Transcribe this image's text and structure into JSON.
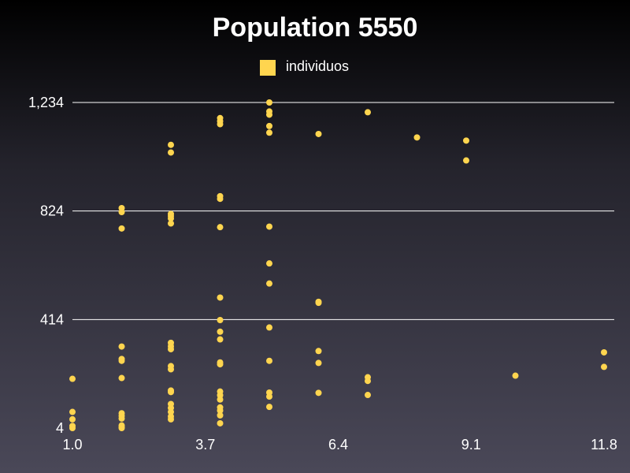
{
  "chart_data": {
    "type": "scatter",
    "title": "Population 5550",
    "xlabel": "",
    "ylabel": "",
    "series": [
      {
        "name": "individuos",
        "color": "#ffd54f",
        "points": [
          [
            1.0,
            190
          ],
          [
            1.0,
            65
          ],
          [
            1.0,
            37
          ],
          [
            1.0,
            12
          ],
          [
            1.0,
            4
          ],
          [
            2.0,
            835
          ],
          [
            2.0,
            820
          ],
          [
            2.0,
            758
          ],
          [
            2.0,
            312
          ],
          [
            2.0,
            265
          ],
          [
            2.0,
            258
          ],
          [
            2.0,
            193
          ],
          [
            2.0,
            60
          ],
          [
            2.0,
            50
          ],
          [
            2.0,
            40
          ],
          [
            2.0,
            14
          ],
          [
            2.0,
            8
          ],
          [
            2.0,
            4
          ],
          [
            3.0,
            1074
          ],
          [
            3.0,
            1045
          ],
          [
            3.0,
            813
          ],
          [
            3.0,
            805
          ],
          [
            3.0,
            796
          ],
          [
            3.0,
            777
          ],
          [
            3.0,
            326
          ],
          [
            3.0,
            313
          ],
          [
            3.0,
            302
          ],
          [
            3.0,
            238
          ],
          [
            3.0,
            226
          ],
          [
            3.0,
            146
          ],
          [
            3.0,
            140
          ],
          [
            3.0,
            95
          ],
          [
            3.0,
            80
          ],
          [
            3.0,
            65
          ],
          [
            3.0,
            48
          ],
          [
            3.0,
            37
          ],
          [
            4.0,
            1175
          ],
          [
            4.0,
            1163
          ],
          [
            4.0,
            1152
          ],
          [
            4.0,
            880
          ],
          [
            4.0,
            870
          ],
          [
            4.0,
            763
          ],
          [
            4.0,
            497
          ],
          [
            4.0,
            412
          ],
          [
            4.0,
            368
          ],
          [
            4.0,
            339
          ],
          [
            4.0,
            252
          ],
          [
            4.0,
            245
          ],
          [
            4.0,
            142
          ],
          [
            4.0,
            128
          ],
          [
            4.0,
            112
          ],
          [
            4.0,
            82
          ],
          [
            4.0,
            70
          ],
          [
            4.0,
            52
          ],
          [
            4.0,
            22
          ],
          [
            5.0,
            1234
          ],
          [
            5.0,
            1200
          ],
          [
            5.0,
            1188
          ],
          [
            5.0,
            1145
          ],
          [
            5.0,
            1120
          ],
          [
            5.0,
            765
          ],
          [
            5.0,
            626
          ],
          [
            5.0,
            550
          ],
          [
            5.0,
            384
          ],
          [
            5.0,
            258
          ],
          [
            5.0,
            138
          ],
          [
            5.0,
            123
          ],
          [
            5.0,
            84
          ],
          [
            6.0,
            1115
          ],
          [
            6.0,
            481
          ],
          [
            6.0,
            477
          ],
          [
            6.0,
            295
          ],
          [
            6.0,
            250
          ],
          [
            6.0,
            137
          ],
          [
            7.0,
            1197
          ],
          [
            7.0,
            196
          ],
          [
            7.0,
            182
          ],
          [
            7.0,
            129
          ],
          [
            8.0,
            1102
          ],
          [
            9.0,
            1090
          ],
          [
            9.0,
            1015
          ],
          [
            10.0,
            202
          ],
          [
            11.8,
            290
          ],
          [
            11.8,
            235
          ]
        ]
      }
    ],
    "xlim": [
      1.0,
      11.8
    ],
    "ylim": [
      4,
      1234
    ],
    "x_ticks": [
      1.0,
      3.7,
      6.4,
      9.1,
      11.8
    ],
    "x_tick_labels": [
      "1.0",
      "3.7",
      "6.4",
      "9.1",
      "11.8"
    ],
    "y_ticks": [
      4,
      414,
      824,
      1234
    ],
    "y_tick_labels": [
      "4",
      "414",
      "824",
      "1,234"
    ],
    "grid": "horizontal",
    "legend_position": "top-center"
  }
}
